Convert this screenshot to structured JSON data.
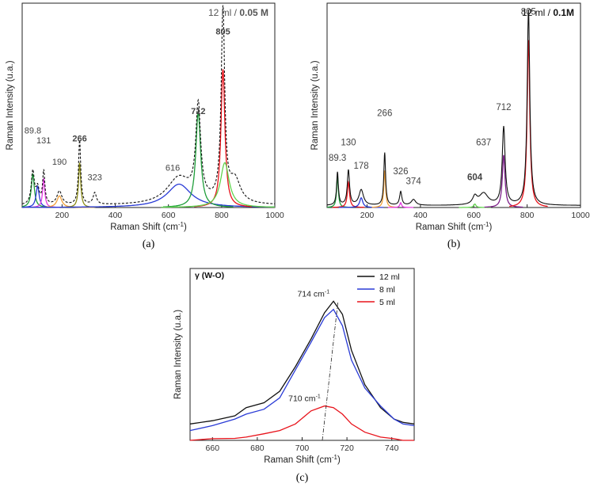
{
  "colors": {
    "black": "#111111",
    "red": "#e8131b",
    "green": "#1f9e3a",
    "blue": "#2a3bd6",
    "magenta": "#e33be0",
    "orange": "#f2a13a",
    "olive": "#8c8c18",
    "lightgreen": "#62d34f",
    "purple": "#7d1f8a",
    "gray": "#555555"
  },
  "chart_data": [
    {
      "id": "a",
      "type": "line",
      "caption": "(a)",
      "title": "12 ml / ",
      "title_bold": "0.05 M",
      "xlabel": "Raman Shift (cm",
      "xlabel_sup": "-1",
      "xlabel_end": ")",
      "ylabel": "Raman Intensity (u.a.)",
      "xlim": [
        50,
        1000
      ],
      "ylim": [
        0,
        1.05
      ],
      "xticks": [
        200,
        400,
        600,
        800,
        1000
      ],
      "peak_labels": [
        {
          "text": "89.8",
          "x": 90,
          "y": 0.38,
          "bold": false
        },
        {
          "text": "131",
          "x": 131,
          "y": 0.33,
          "bold": false
        },
        {
          "text": "190",
          "x": 190,
          "y": 0.22,
          "bold": false
        },
        {
          "text": "266",
          "x": 266,
          "y": 0.34,
          "bold": true
        },
        {
          "text": "323",
          "x": 323,
          "y": 0.14,
          "bold": false
        },
        {
          "text": "616",
          "x": 616,
          "y": 0.19,
          "bold": false
        },
        {
          "text": "712",
          "x": 712,
          "y": 0.48,
          "bold": true
        },
        {
          "text": "805",
          "x": 805,
          "y": 0.89,
          "bold": true
        }
      ],
      "fits": [
        {
          "color": "green",
          "center": 90,
          "amp": 0.17,
          "width": 14
        },
        {
          "color": "blue",
          "center": 108,
          "amp": 0.11,
          "width": 14
        },
        {
          "color": "magenta",
          "center": 131,
          "amp": 0.15,
          "width": 10
        },
        {
          "color": "orange",
          "center": 190,
          "amp": 0.06,
          "width": 22
        },
        {
          "color": "olive",
          "center": 266,
          "amp": 0.23,
          "width": 10
        },
        {
          "color": "blue",
          "center": 640,
          "amp": 0.12,
          "width": 110
        },
        {
          "color": "green",
          "center": 712,
          "amp": 0.49,
          "width": 22
        },
        {
          "color": "red",
          "center": 805,
          "amp": 0.71,
          "width": 18
        },
        {
          "color": "lightgreen",
          "center": 812,
          "amp": 0.23,
          "width": 40
        }
      ],
      "experimental": {
        "style": "dashed",
        "color": "black",
        "peaks": [
          {
            "center": 90,
            "amp": 0.17,
            "width": 14
          },
          {
            "center": 108,
            "amp": 0.08,
            "width": 14
          },
          {
            "center": 131,
            "amp": 0.17,
            "width": 10
          },
          {
            "center": 190,
            "amp": 0.07,
            "width": 22
          },
          {
            "center": 266,
            "amp": 0.33,
            "width": 10
          },
          {
            "center": 323,
            "amp": 0.06,
            "width": 15
          },
          {
            "center": 640,
            "amp": 0.14,
            "width": 110
          },
          {
            "center": 712,
            "amp": 0.48,
            "width": 22
          },
          {
            "center": 805,
            "amp": 0.98,
            "width": 16
          },
          {
            "center": 850,
            "amp": 0.12,
            "width": 50
          }
        ]
      },
      "grid": false
    },
    {
      "id": "b",
      "type": "line",
      "caption": "(b)",
      "title": "12 ml / ",
      "title_bold": "0.1M",
      "xlabel": "Raman Shift (cm",
      "xlabel_sup": "-1",
      "xlabel_end": ")",
      "ylabel": "Raman Intensity (u.a.)",
      "xlim": [
        50,
        1000
      ],
      "ylim": [
        0,
        1.05
      ],
      "xticks": [
        200,
        400,
        600,
        800,
        1000
      ],
      "peak_labels": [
        {
          "text": "89.3",
          "x": 89,
          "y": 0.24,
          "bold": false
        },
        {
          "text": "130",
          "x": 130,
          "y": 0.32,
          "bold": false
        },
        {
          "text": "178",
          "x": 178,
          "y": 0.2,
          "bold": false
        },
        {
          "text": "266",
          "x": 266,
          "y": 0.47,
          "bold": false
        },
        {
          "text": "326",
          "x": 326,
          "y": 0.17,
          "bold": false
        },
        {
          "text": "374",
          "x": 374,
          "y": 0.12,
          "bold": false
        },
        {
          "text": "604",
          "x": 604,
          "y": 0.14,
          "bold": true
        },
        {
          "text": "637",
          "x": 637,
          "y": 0.32,
          "bold": false
        },
        {
          "text": "712",
          "x": 712,
          "y": 0.5,
          "bold": false
        },
        {
          "text": "805",
          "x": 805,
          "y": 0.99,
          "bold": false
        }
      ],
      "fits": [
        {
          "color": "green",
          "center": 89,
          "amp": 0.16,
          "width": 8
        },
        {
          "color": "red",
          "center": 130,
          "amp": 0.13,
          "width": 10
        },
        {
          "color": "blue",
          "center": 178,
          "amp": 0.05,
          "width": 14
        },
        {
          "color": "orange",
          "center": 266,
          "amp": 0.19,
          "width": 8
        },
        {
          "color": "magenta",
          "center": 326,
          "amp": 0.025,
          "width": 8
        },
        {
          "color": "lightgreen",
          "center": 604,
          "amp": 0.018,
          "width": 10
        },
        {
          "color": "purple",
          "center": 712,
          "amp": 0.27,
          "width": 12
        },
        {
          "color": "red",
          "center": 805,
          "amp": 0.86,
          "width": 12
        }
      ],
      "experimental": {
        "style": "solid",
        "color": "black",
        "peaks": [
          {
            "center": 89,
            "amp": 0.17,
            "width": 8
          },
          {
            "center": 130,
            "amp": 0.18,
            "width": 10
          },
          {
            "center": 178,
            "amp": 0.08,
            "width": 20
          },
          {
            "center": 266,
            "amp": 0.27,
            "width": 8
          },
          {
            "center": 326,
            "amp": 0.07,
            "width": 10
          },
          {
            "center": 374,
            "amp": 0.03,
            "width": 20
          },
          {
            "center": 604,
            "amp": 0.04,
            "width": 20
          },
          {
            "center": 637,
            "amp": 0.06,
            "width": 40
          },
          {
            "center": 712,
            "amp": 0.4,
            "width": 13
          },
          {
            "center": 805,
            "amp": 1.0,
            "width": 12
          }
        ]
      },
      "grid": false
    },
    {
      "id": "c",
      "type": "line",
      "caption": "(c)",
      "title": "γ (W-O)",
      "xlabel": "Raman Shift (cm",
      "xlabel_sup": "-1",
      "xlabel_end": ")",
      "ylabel": "Raman Intensity (u.a.)",
      "xlim": [
        650,
        750
      ],
      "ylim": [
        0,
        1.05
      ],
      "xticks": [
        660,
        680,
        700,
        720,
        740
      ],
      "legend_position": "top-right",
      "x": [
        650,
        660,
        670,
        675,
        683,
        690,
        697,
        704,
        710,
        714,
        718,
        722,
        728,
        735,
        741,
        745,
        750
      ],
      "series": [
        {
          "name": "12 ml",
          "color": "black",
          "values": [
            0.1,
            0.12,
            0.15,
            0.2,
            0.23,
            0.3,
            0.45,
            0.62,
            0.78,
            0.85,
            0.77,
            0.55,
            0.34,
            0.2,
            0.13,
            0.11,
            0.1
          ]
        },
        {
          "name": "8 ml",
          "color": "blue",
          "values": [
            0.06,
            0.09,
            0.13,
            0.16,
            0.19,
            0.26,
            0.43,
            0.6,
            0.75,
            0.8,
            0.7,
            0.49,
            0.32,
            0.21,
            0.13,
            0.1,
            0.09
          ]
        },
        {
          "name": "5 ml",
          "color": "red",
          "values": [
            0.0,
            0.01,
            0.012,
            0.02,
            0.04,
            0.06,
            0.1,
            0.18,
            0.21,
            0.2,
            0.16,
            0.1,
            0.05,
            0.02,
            0.01,
            0.0,
            0.0
          ]
        }
      ],
      "annotations": [
        {
          "text": "714 cm",
          "sup": "-1",
          "x": 714,
          "y": 0.85
        },
        {
          "text": "710 cm",
          "sup": "-1",
          "x": 710,
          "y": 0.21
        }
      ],
      "guide_line": {
        "from": [
          709,
          0.0
        ],
        "to": [
          716,
          0.85
        ]
      },
      "grid": false
    }
  ]
}
